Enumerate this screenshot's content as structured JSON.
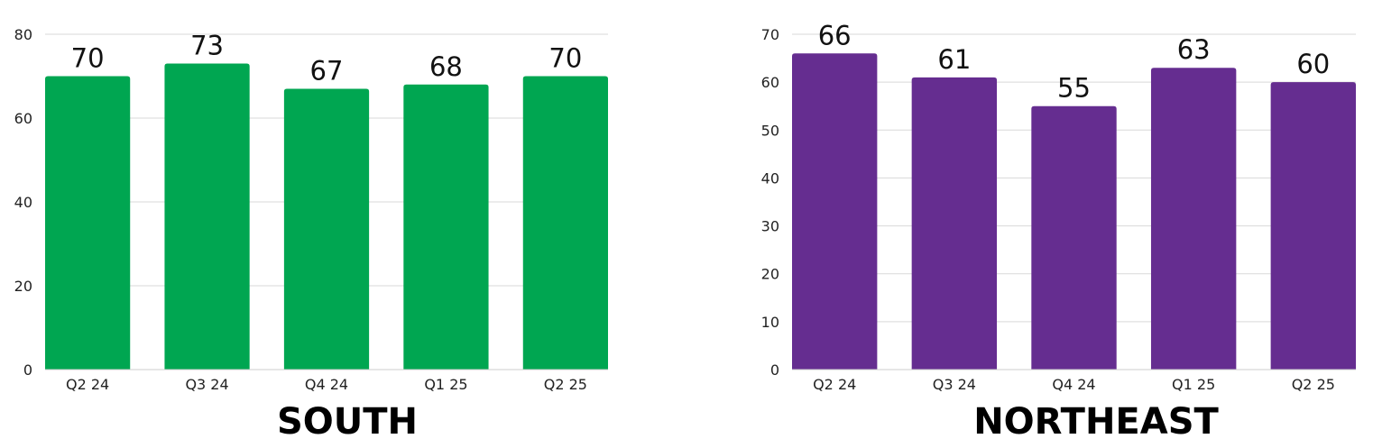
{
  "chart_data": [
    {
      "type": "bar",
      "title": "SOUTH",
      "categories": [
        "Q2 24",
        "Q3 24",
        "Q4 24",
        "Q1 25",
        "Q2 25"
      ],
      "values": [
        70,
        73,
        67,
        68,
        70
      ],
      "ylim": [
        0,
        80
      ],
      "yticks": [
        0,
        20,
        40,
        60,
        80
      ],
      "color": "#00a651",
      "grid": true,
      "data_labels": true
    },
    {
      "type": "bar",
      "title": "NORTHEAST",
      "categories": [
        "Q2 24",
        "Q3 24",
        "Q4 24",
        "Q1 25",
        "Q2 25"
      ],
      "values": [
        66,
        61,
        55,
        63,
        60
      ],
      "ylim": [
        0,
        70
      ],
      "yticks": [
        0,
        10,
        20,
        30,
        40,
        50,
        60,
        70
      ],
      "color": "#652d90",
      "grid": true,
      "data_labels": true
    }
  ]
}
